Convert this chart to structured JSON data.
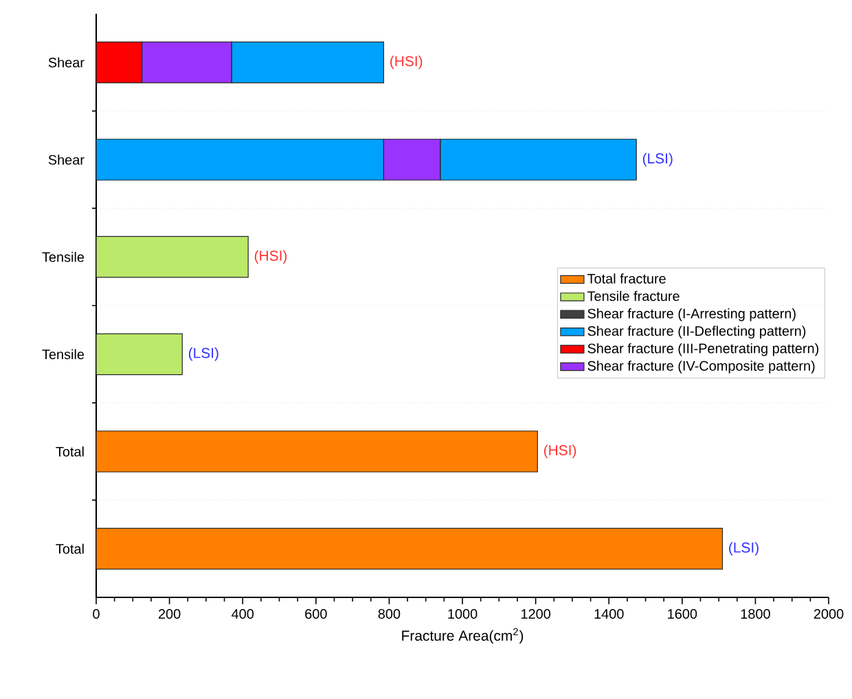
{
  "chart_data": {
    "type": "bar",
    "orientation": "horizontal",
    "stacked": true,
    "categories": [
      "Shear",
      "Shear",
      "Tensile",
      "Tensile",
      "Total",
      "Total"
    ],
    "xlabel": "Fracture Area(cm$^{2}$)",
    "xlim": [
      0,
      2000
    ],
    "xticks": [
      0,
      200,
      400,
      600,
      800,
      1000,
      1200,
      1400,
      1600,
      1800,
      2000
    ],
    "grid": "y",
    "legend": "right",
    "series": [
      {
        "name": "Total fracture",
        "color": "#ff8000",
        "values": [
          null,
          null,
          null,
          null,
          1205,
          1710
        ]
      },
      {
        "name": "Tensile fracture",
        "color": "#bbe96a",
        "values": [
          null,
          null,
          415,
          235,
          null,
          null
        ]
      },
      {
        "name": "Shear fracture (I-Arresting pattern)",
        "color": "#404040",
        "values": [
          null,
          null,
          null,
          null,
          null,
          null
        ]
      },
      {
        "name": "Shear fracture (II-Deflecting pattern)",
        "color": "#00a2ff",
        "values": [
          null,
          785,
          null,
          null,
          null,
          null
        ]
      },
      {
        "name": "Shear fracture (III-Penetrating pattern)",
        "color": "#ff0000",
        "values": [
          125,
          null,
          null,
          null,
          null,
          null
        ]
      },
      {
        "name": "Shear fracture (IV-Composite pattern)",
        "color": "#9933ff",
        "values": [
          245,
          155,
          null,
          null,
          null,
          null
        ]
      },
      {
        "color": "#00a2ff",
        "values": [
          415,
          535,
          null,
          null,
          null,
          null
        ]
      }
    ],
    "annotations": [
      "(HSI)",
      "(LSI)",
      "(HSI)",
      "(LSI)",
      "(HSI)",
      "(LSI)"
    ]
  }
}
